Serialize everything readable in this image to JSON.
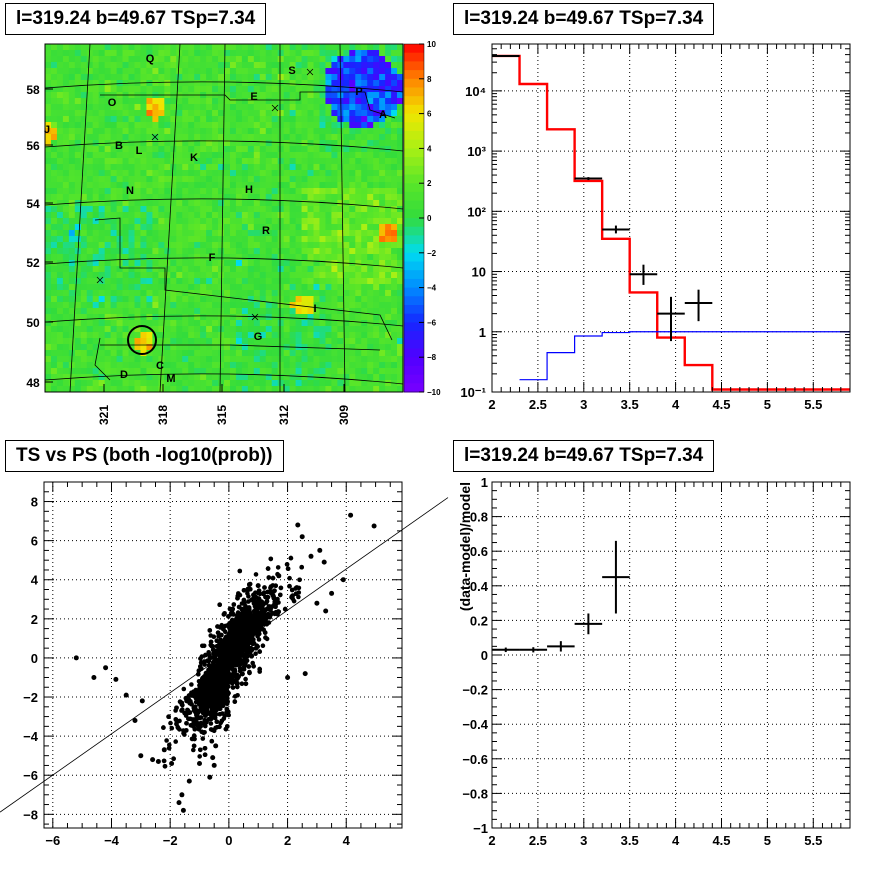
{
  "panels": {
    "tl_title": "l=319.24 b=49.67 TSp=7.34",
    "tr_title": "l=319.24 b=49.67 TSp=7.34",
    "bl_title": "TS vs PS (both -log10(prob))",
    "br_title": "l=319.24 b=49.67 TSp=7.34"
  },
  "colors": {
    "model": "#ff0000",
    "background_model": "#0000ff",
    "data": "#000000"
  },
  "chart_data": [
    {
      "type": "heatmap",
      "title": "l=319.24 b=49.67 TSp=7.34",
      "x_ticks": [
        "321",
        "318",
        "315",
        "312",
        "309"
      ],
      "y_ticks": [
        "48",
        "50",
        "52",
        "54",
        "56",
        "58"
      ],
      "colorbar_ticks": [
        "10",
        "8",
        "6",
        "4",
        "2",
        "0",
        "−2",
        "−4",
        "−6",
        "−8",
        "−10"
      ],
      "zlim": [
        -10,
        10
      ],
      "region_labels": [
        "Q",
        "S",
        "O",
        "E",
        "P",
        "A",
        "J",
        "B",
        "L",
        "K",
        "N",
        "H",
        "R",
        "F",
        "I",
        "G",
        "C",
        "D",
        "M"
      ],
      "highlight": {
        "l": 319.24,
        "b": 49.67,
        "value": 7.34
      }
    },
    {
      "type": "line",
      "title": "l=319.24 b=49.67 TSp=7.34",
      "y_scale": "log",
      "xlim": [
        2,
        5.9
      ],
      "ylim": [
        0.1,
        60000
      ],
      "x_ticks": [
        "2",
        "2.5",
        "3",
        "3.5",
        "4",
        "4.5",
        "5",
        "5.5"
      ],
      "y_ticks": [
        "10⁻¹",
        "1",
        "10",
        "10²",
        "10³",
        "10⁴"
      ],
      "series": [
        {
          "kind": "step",
          "color": "#ff0000",
          "edges": [
            2.0,
            2.3,
            2.6,
            2.9,
            3.2,
            3.5,
            3.8,
            4.1,
            4.4,
            5.9
          ],
          "values": [
            38000,
            13000,
            2300,
            320,
            35,
            4.5,
            0.8,
            0.28,
            0.11
          ]
        },
        {
          "kind": "step",
          "color": "#0000ff",
          "edges": [
            2.3,
            2.6,
            2.9,
            3.2,
            3.5,
            5.9
          ],
          "values": [
            0.16,
            0.45,
            0.85,
            0.97,
            1.0
          ]
        },
        {
          "kind": "errorbars",
          "color": "#000000",
          "points": [
            {
              "x": 2.15,
              "xerr": 0.15,
              "y": 38000,
              "ylo": 37000,
              "yhi": 39000
            },
            {
              "x": 3.05,
              "xerr": 0.15,
              "y": 350,
              "ylo": 330,
              "yhi": 370
            },
            {
              "x": 3.35,
              "xerr": 0.15,
              "y": 50,
              "ylo": 43,
              "yhi": 58
            },
            {
              "x": 3.65,
              "xerr": 0.15,
              "y": 9,
              "ylo": 6,
              "yhi": 13
            },
            {
              "x": 3.95,
              "xerr": 0.15,
              "y": 2,
              "ylo": 0.7,
              "yhi": 3.8
            },
            {
              "x": 4.25,
              "xerr": 0.15,
              "y": 3,
              "ylo": 1.5,
              "yhi": 5
            }
          ]
        }
      ]
    },
    {
      "type": "scatter",
      "title": "TS vs PS (both -log10(prob))",
      "xlim": [
        -6.3,
        5.9
      ],
      "ylim": [
        -8.7,
        9.0
      ],
      "x_ticks": [
        "−6",
        "−4",
        "−2",
        "0",
        "2",
        "4"
      ],
      "y_ticks": [
        "−8",
        "−6",
        "−4",
        "−2",
        "0",
        "2",
        "4",
        "6",
        "8"
      ],
      "fit_line": {
        "x": [
          -6.3,
          5.9
        ],
        "y": [
          -6.15,
          5.85
        ]
      },
      "outliers": [
        [
          4.15,
          7.3
        ],
        [
          4.95,
          6.75
        ],
        [
          2.35,
          6.8
        ],
        [
          2.5,
          6.2
        ],
        [
          3.1,
          5.5
        ],
        [
          3.25,
          4.9
        ],
        [
          3.5,
          3.3
        ],
        [
          3.9,
          4.0
        ],
        [
          -5.2,
          0.0
        ],
        [
          -4.6,
          -1.0
        ],
        [
          -4.2,
          -0.5
        ],
        [
          -3.85,
          -1.1
        ],
        [
          -3.5,
          -1.9
        ],
        [
          -3.2,
          -3.2
        ],
        [
          -3.0,
          -5.0
        ],
        [
          -2.95,
          -2.2
        ],
        [
          -2.6,
          -5.2
        ],
        [
          -2.4,
          -5.3
        ],
        [
          -2.2,
          -4.7
        ],
        [
          -1.95,
          -5.4
        ],
        [
          -1.7,
          -7.4
        ],
        [
          -1.6,
          -7.0
        ],
        [
          -1.55,
          -7.8
        ],
        [
          -1.35,
          -6.3
        ],
        [
          -1.0,
          -5.4
        ],
        [
          -0.65,
          -6.1
        ],
        [
          -0.5,
          -5.5
        ],
        [
          -0.55,
          -5.1
        ],
        [
          -0.45,
          -4.5
        ],
        [
          1.0,
          3.7
        ],
        [
          1.7,
          4.2
        ],
        [
          2.8,
          5.2
        ],
        [
          3.0,
          2.8
        ],
        [
          3.3,
          2.4
        ],
        [
          2.6,
          -0.8
        ],
        [
          2.0,
          -1.0
        ]
      ]
    },
    {
      "type": "scatter",
      "title": "l=319.24 b=49.67 TSp=7.34",
      "ylabel": "(data-model)/model",
      "xlim": [
        2,
        5.9
      ],
      "ylim": [
        -1,
        1
      ],
      "x_ticks": [
        "2",
        "2.5",
        "3",
        "3.5",
        "4",
        "4.5",
        "5",
        "5.5"
      ],
      "y_ticks": [
        "−1",
        "−0.8",
        "−0.6",
        "−0.4",
        "−0.2",
        "0",
        "0.2",
        "0.4",
        "0.6",
        "0.8",
        "1"
      ],
      "points": [
        {
          "x": 2.15,
          "xerr": 0.15,
          "y": 0.03,
          "yerr": 0.013
        },
        {
          "x": 2.45,
          "xerr": 0.15,
          "y": 0.03,
          "yerr": 0.015
        },
        {
          "x": 2.75,
          "xerr": 0.15,
          "y": 0.05,
          "yerr": 0.03
        },
        {
          "x": 3.05,
          "xerr": 0.15,
          "y": 0.18,
          "yerr": 0.06
        },
        {
          "x": 3.35,
          "xerr": 0.15,
          "y": 0.45,
          "yerr": 0.21
        }
      ]
    }
  ]
}
